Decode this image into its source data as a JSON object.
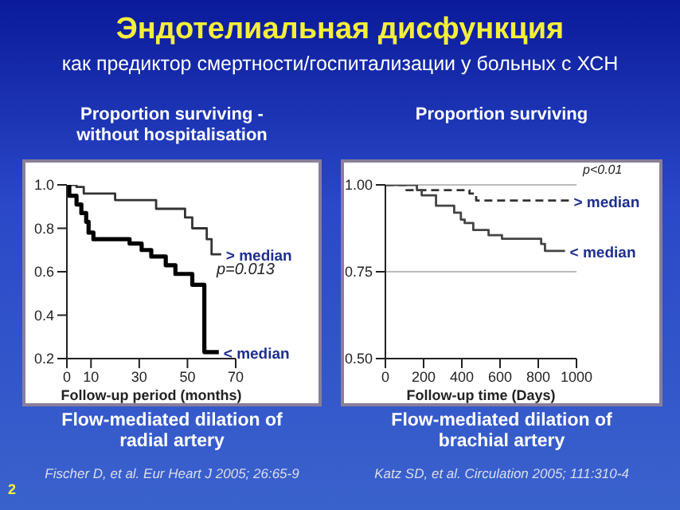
{
  "chart_data": [
    {
      "type": "step",
      "title": "Proportion surviving - without hospitalisation",
      "xlabel": "Follow-up period (months)",
      "annotations": [
        "Эндотелиальная дисфункция",
        "как предиктор смертности/госпитализации у больных с ХСН",
        "p=0.013",
        "Flow-mediated dilation of radial artery",
        "Fischer D, et al. Eur Heart J 2005; 26:65-9",
        "2"
      ],
      "xlim": [
        0,
        70
      ],
      "xticks": [
        0,
        10,
        30,
        50,
        70
      ],
      "ylim": [
        0.2,
        1.0
      ],
      "yticks": [
        0.2,
        0.4,
        0.6,
        0.8,
        {
          "value": 1.0,
          "label": "1.0"
        }
      ],
      "series": [
        {
          "name": "> median",
          "color": "#333333",
          "x": [
            0,
            4,
            7,
            20,
            37,
            49,
            52,
            58,
            60,
            64
          ],
          "values": [
            1.0,
            0.99,
            0.96,
            0.93,
            0.89,
            0.85,
            0.8,
            0.75,
            0.68,
            0.68
          ]
        },
        {
          "name": "< median",
          "color": "#000000",
          "x": [
            0,
            1,
            4,
            6,
            8,
            9,
            11,
            26,
            31,
            35,
            41,
            45,
            52,
            57,
            63
          ],
          "values": [
            1.0,
            0.95,
            0.91,
            0.87,
            0.83,
            0.78,
            0.75,
            0.73,
            0.7,
            0.67,
            0.63,
            0.59,
            0.54,
            0.23,
            0.23
          ]
        }
      ]
    },
    {
      "type": "step",
      "title": "Proportion surviving",
      "xlabel": "Follow-up time (Days)",
      "annotations": [
        "p<0.01",
        "Flow-mediated dilation of brachial artery",
        "Katz SD, et al. Circulation 2005; 111:310-4"
      ],
      "xlim": [
        0,
        1000
      ],
      "xticks": [
        0,
        200,
        400,
        600,
        800,
        1000
      ],
      "ylim": [
        0.5,
        1.0
      ],
      "yticks": [
        {
          "value": 0.5,
          "label": "0.50"
        },
        {
          "value": 0.75,
          "label": "0.75"
        },
        {
          "value": 1.0,
          "label": "1.00"
        }
      ],
      "grid": "y",
      "series": [
        {
          "name": "> median",
          "color": "#333333",
          "line_style": "dashed",
          "x": [
            0,
            110,
            440,
            475,
            960
          ],
          "values": [
            1.0,
            0.985,
            0.975,
            0.955,
            0.955
          ]
        },
        {
          "name": "< median",
          "color": "#444444",
          "x": [
            0,
            165,
            190,
            265,
            360,
            395,
            415,
            460,
            540,
            610,
            815,
            835,
            940
          ],
          "values": [
            1.0,
            0.985,
            0.97,
            0.94,
            0.92,
            0.9,
            0.89,
            0.87,
            0.855,
            0.845,
            0.83,
            0.81,
            0.81
          ]
        }
      ]
    }
  ]
}
